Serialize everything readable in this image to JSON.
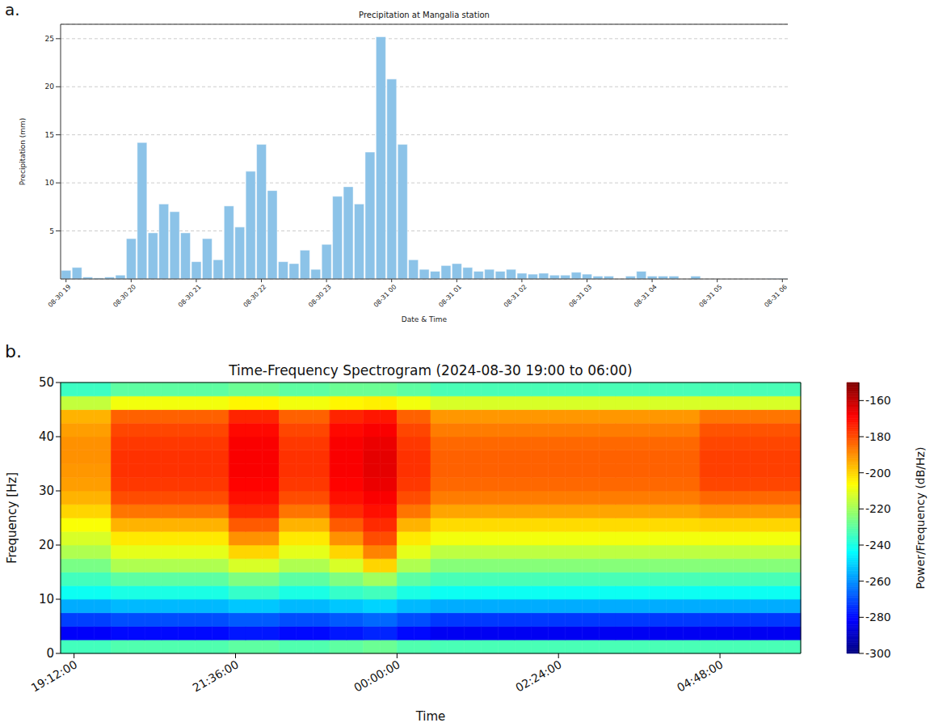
{
  "chart_data": [
    {
      "type": "bar",
      "panel_label": "a.",
      "title": "Precipitation at Mangalia station",
      "x_label": "Date & Time",
      "y_label": "Precipitation (mm)",
      "categories": [
        "08-30 19",
        null,
        null,
        null,
        null,
        null,
        "08-30 20",
        null,
        null,
        null,
        null,
        null,
        "08-30 21",
        null,
        null,
        null,
        null,
        null,
        "08-30 22",
        null,
        null,
        null,
        null,
        null,
        "08-30 23",
        null,
        null,
        null,
        null,
        null,
        "08-31 00",
        null,
        null,
        null,
        null,
        null,
        "08-31 01",
        null,
        null,
        null,
        null,
        null,
        "08-31 02",
        null,
        null,
        null,
        null,
        null,
        "08-31 03",
        null,
        null,
        null,
        null,
        null,
        "08-31 04",
        null,
        null,
        null,
        null,
        null,
        "08-31 05",
        null,
        null,
        null,
        null,
        null,
        "08-31 06"
      ],
      "values": [
        0.9,
        1.2,
        0.2,
        0.1,
        0.2,
        0.4,
        4.2,
        14.2,
        4.8,
        7.8,
        7.0,
        4.8,
        1.8,
        4.2,
        2.0,
        7.6,
        5.4,
        11.2,
        14.0,
        9.2,
        1.8,
        1.6,
        3.0,
        1.0,
        3.6,
        8.6,
        9.6,
        7.8,
        13.2,
        25.2,
        20.8,
        14.0,
        2.0,
        1.0,
        0.8,
        1.4,
        1.6,
        1.2,
        0.8,
        1.0,
        0.8,
        1.0,
        0.6,
        0.5,
        0.6,
        0.4,
        0.4,
        0.7,
        0.5,
        0.3,
        0.3,
        0.0,
        0.3,
        0.8,
        0.3,
        0.3,
        0.3,
        0.0,
        0.3,
        0.0,
        0.0,
        0.0,
        0.0,
        0.0,
        0.0,
        0.05,
        0.05
      ],
      "color": "#8cc3e8",
      "ylim": [
        0,
        26.5
      ],
      "yticks": [
        5,
        10,
        15,
        20,
        25
      ],
      "grid": true
    },
    {
      "type": "heatmap",
      "panel_label": "b.",
      "title": "Time-Frequency Spectrogram (2024-08-30 19:00 to 06:00)",
      "x_label": "Time",
      "y_label": "Frequency [Hz]",
      "xlim": [
        19,
        30
      ],
      "xticks": [
        {
          "value": 19.2,
          "label": "19:12:00"
        },
        {
          "value": 21.6,
          "label": "21:36:00"
        },
        {
          "value": 24,
          "label": "00:00:00"
        },
        {
          "value": 26.4,
          "label": "02:24:00"
        },
        {
          "value": 28.8,
          "label": "04:48:00"
        }
      ],
      "ylim": [
        0,
        50
      ],
      "yticks": [
        0,
        10,
        20,
        30,
        40,
        50
      ],
      "time_bins": [
        19,
        19.25,
        19.5,
        19.75,
        20,
        20.25,
        20.5,
        20.75,
        21,
        21.25,
        21.5,
        21.75,
        22,
        22.25,
        22.5,
        22.75,
        23,
        23.25,
        23.5,
        23.75,
        24,
        24.25,
        24.5,
        24.75,
        25,
        25.25,
        25.5,
        25.75,
        26,
        26.25,
        26.5,
        26.75,
        27,
        27.25,
        27.5,
        27.75,
        28,
        28.25,
        28.5,
        28.75,
        29,
        29.25,
        29.5,
        29.75,
        30
      ],
      "frequency_bins": [
        0,
        2.5,
        5,
        7.5,
        10,
        12.5,
        15,
        17.5,
        20,
        22.5,
        25,
        27.5,
        30,
        32.5,
        35,
        37.5,
        40,
        42.5,
        45,
        47.5,
        50
      ],
      "cells": [
        [
          -234,
          -234,
          -234,
          -232,
          -232,
          -232,
          -232,
          -232,
          -232,
          -232,
          -230,
          -230,
          -230,
          -232,
          -232,
          -232,
          -230,
          -230,
          -228,
          -228,
          -232,
          -232,
          -233,
          -233,
          -233,
          -233,
          -233,
          -233,
          -233,
          -233,
          -233,
          -233,
          -233,
          -233,
          -233,
          -233,
          -233,
          -233,
          -233,
          -233,
          -233,
          -233,
          -233,
          -233
        ],
        [
          -282,
          -282,
          -282,
          -280,
          -280,
          -280,
          -280,
          -280,
          -280,
          -280,
          -278,
          -278,
          -278,
          -280,
          -280,
          -280,
          -278,
          -278,
          -276,
          -276,
          -280,
          -280,
          -283,
          -283,
          -283,
          -283,
          -283,
          -283,
          -283,
          -283,
          -283,
          -283,
          -283,
          -283,
          -283,
          -283,
          -283,
          -283,
          -283,
          -283,
          -283,
          -283,
          -283,
          -283
        ],
        [
          -272,
          -272,
          -272,
          -270,
          -270,
          -270,
          -270,
          -270,
          -270,
          -270,
          -268,
          -268,
          -268,
          -270,
          -270,
          -270,
          -268,
          -268,
          -266,
          -266,
          -270,
          -270,
          -273,
          -273,
          -273,
          -273,
          -273,
          -273,
          -273,
          -273,
          -273,
          -273,
          -273,
          -273,
          -273,
          -273,
          -273,
          -273,
          -273,
          -273,
          -273,
          -273,
          -273,
          -273
        ],
        [
          -256,
          -256,
          -256,
          -254,
          -254,
          -254,
          -254,
          -254,
          -254,
          -254,
          -252,
          -252,
          -252,
          -254,
          -254,
          -254,
          -252,
          -252,
          -250,
          -250,
          -254,
          -254,
          -256,
          -256,
          -256,
          -256,
          -256,
          -256,
          -256,
          -256,
          -256,
          -256,
          -256,
          -256,
          -256,
          -256,
          -256,
          -256,
          -256,
          -256,
          -256,
          -256,
          -256,
          -256
        ],
        [
          -242,
          -242,
          -242,
          -240,
          -240,
          -240,
          -240,
          -240,
          -240,
          -240,
          -236,
          -236,
          -236,
          -240,
          -240,
          -240,
          -236,
          -236,
          -234,
          -234,
          -240,
          -240,
          -242,
          -242,
          -242,
          -242,
          -242,
          -242,
          -242,
          -242,
          -242,
          -242,
          -242,
          -242,
          -242,
          -242,
          -242,
          -242,
          -242,
          -242,
          -242,
          -242,
          -242,
          -242
        ],
        [
          -234,
          -234,
          -234,
          -230,
          -230,
          -230,
          -230,
          -230,
          -230,
          -230,
          -225,
          -225,
          -225,
          -230,
          -230,
          -230,
          -225,
          -225,
          -220,
          -220,
          -230,
          -230,
          -233,
          -233,
          -233,
          -233,
          -233,
          -233,
          -233,
          -233,
          -233,
          -233,
          -233,
          -233,
          -233,
          -233,
          -233,
          -233,
          -233,
          -233,
          -233,
          -233,
          -233,
          -233
        ],
        [
          -226,
          -226,
          -226,
          -218,
          -218,
          -218,
          -218,
          -218,
          -218,
          -218,
          -212,
          -212,
          -212,
          -218,
          -218,
          -218,
          -212,
          -212,
          -200,
          -200,
          -218,
          -218,
          -224,
          -224,
          -224,
          -224,
          -224,
          -224,
          -224,
          -224,
          -224,
          -224,
          -224,
          -224,
          -224,
          -224,
          -224,
          -224,
          -224,
          -224,
          -224,
          -224,
          -224,
          -224
        ],
        [
          -218,
          -218,
          -218,
          -210,
          -210,
          -210,
          -210,
          -210,
          -210,
          -210,
          -200,
          -200,
          -200,
          -210,
          -210,
          -210,
          -200,
          -200,
          -188,
          -188,
          -210,
          -210,
          -216,
          -216,
          -216,
          -216,
          -216,
          -216,
          -216,
          -216,
          -216,
          -216,
          -216,
          -216,
          -216,
          -216,
          -216,
          -216,
          -216,
          -216,
          -216,
          -216,
          -216,
          -216
        ],
        [
          -212,
          -212,
          -212,
          -203,
          -203,
          -203,
          -203,
          -203,
          -203,
          -203,
          -190,
          -190,
          -190,
          -203,
          -203,
          -203,
          -190,
          -190,
          -180,
          -180,
          -203,
          -203,
          -208,
          -208,
          -208,
          -208,
          -208,
          -208,
          -208,
          -208,
          -208,
          -208,
          -208,
          -208,
          -208,
          -208,
          -208,
          -208,
          -208,
          -208,
          -208,
          -208,
          -208,
          -208
        ],
        [
          -207,
          -207,
          -207,
          -195,
          -195,
          -195,
          -195,
          -195,
          -195,
          -195,
          -182,
          -182,
          -182,
          -195,
          -195,
          -195,
          -182,
          -182,
          -175,
          -175,
          -195,
          -195,
          -201,
          -201,
          -201,
          -201,
          -201,
          -201,
          -201,
          -201,
          -201,
          -201,
          -201,
          -201,
          -201,
          -201,
          -201,
          -201,
          -200,
          -200,
          -200,
          -200,
          -200,
          -200
        ],
        [
          -200,
          -200,
          -200,
          -186,
          -186,
          -186,
          -186,
          -186,
          -186,
          -186,
          -175,
          -175,
          -175,
          -186,
          -186,
          -186,
          -175,
          -175,
          -171,
          -171,
          -186,
          -186,
          -193,
          -193,
          -193,
          -193,
          -193,
          -193,
          -193,
          -193,
          -193,
          -193,
          -193,
          -193,
          -193,
          -193,
          -193,
          -193,
          -191,
          -191,
          -191,
          -191,
          -191,
          -191
        ],
        [
          -195,
          -195,
          -195,
          -180,
          -180,
          -180,
          -180,
          -180,
          -180,
          -180,
          -171,
          -171,
          -171,
          -180,
          -180,
          -180,
          -171,
          -171,
          -168,
          -168,
          -180,
          -180,
          -187,
          -187,
          -187,
          -187,
          -187,
          -187,
          -187,
          -187,
          -187,
          -187,
          -187,
          -187,
          -187,
          -187,
          -187,
          -187,
          -184,
          -184,
          -184,
          -184,
          -184,
          -184
        ],
        [
          -192,
          -192,
          -192,
          -177,
          -177,
          -177,
          -177,
          -177,
          -177,
          -177,
          -169,
          -169,
          -169,
          -177,
          -177,
          -177,
          -169,
          -169,
          -166,
          -166,
          -177,
          -177,
          -184,
          -184,
          -184,
          -184,
          -184,
          -184,
          -184,
          -184,
          -184,
          -184,
          -184,
          -184,
          -184,
          -184,
          -184,
          -184,
          -179,
          -179,
          -179,
          -179,
          -179,
          -179
        ],
        [
          -191,
          -191,
          -191,
          -176,
          -176,
          -176,
          -176,
          -176,
          -176,
          -176,
          -168,
          -168,
          -168,
          -176,
          -176,
          -176,
          -168,
          -168,
          -165,
          -165,
          -176,
          -176,
          -183,
          -183,
          -183,
          -183,
          -183,
          -183,
          -183,
          -183,
          -183,
          -183,
          -183,
          -183,
          -183,
          -183,
          -183,
          -183,
          -178,
          -178,
          -178,
          -178,
          -178,
          -178
        ],
        [
          -190,
          -190,
          -190,
          -176,
          -176,
          -176,
          -176,
          -176,
          -176,
          -176,
          -168,
          -168,
          -168,
          -176,
          -176,
          -176,
          -168,
          -168,
          -165,
          -165,
          -176,
          -176,
          -183,
          -183,
          -183,
          -183,
          -183,
          -183,
          -183,
          -183,
          -183,
          -183,
          -183,
          -183,
          -183,
          -183,
          -183,
          -183,
          -178,
          -178,
          -178,
          -178,
          -178,
          -178
        ],
        [
          -190,
          -190,
          -190,
          -177,
          -177,
          -177,
          -177,
          -177,
          -177,
          -177,
          -168,
          -168,
          -168,
          -177,
          -177,
          -177,
          -168,
          -168,
          -166,
          -166,
          -177,
          -177,
          -184,
          -184,
          -184,
          -184,
          -184,
          -184,
          -184,
          -184,
          -184,
          -184,
          -184,
          -184,
          -184,
          -184,
          -184,
          -184,
          -179,
          -179,
          -179,
          -179,
          -179,
          -179
        ],
        [
          -192,
          -192,
          -192,
          -179,
          -179,
          -179,
          -179,
          -179,
          -179,
          -179,
          -170,
          -170,
          -170,
          -179,
          -179,
          -179,
          -170,
          -170,
          -168,
          -168,
          -179,
          -179,
          -187,
          -187,
          -187,
          -187,
          -187,
          -187,
          -187,
          -187,
          -187,
          -187,
          -187,
          -187,
          -187,
          -187,
          -187,
          -187,
          -181,
          -181,
          -181,
          -181,
          -181,
          -181
        ],
        [
          -195,
          -195,
          -195,
          -183,
          -183,
          -183,
          -183,
          -183,
          -183,
          -183,
          -174,
          -174,
          -174,
          -183,
          -183,
          -183,
          -174,
          -174,
          -172,
          -172,
          -183,
          -183,
          -191,
          -191,
          -191,
          -191,
          -191,
          -191,
          -191,
          -191,
          -191,
          -191,
          -191,
          -191,
          -191,
          -191,
          -191,
          -191,
          -186,
          -186,
          -186,
          -186,
          -186,
          -186
        ],
        [
          -215,
          -215,
          -215,
          -208,
          -208,
          -208,
          -208,
          -208,
          -208,
          -208,
          -205,
          -205,
          -205,
          -208,
          -208,
          -208,
          -205,
          -205,
          -204,
          -204,
          -208,
          -208,
          -212,
          -212,
          -212,
          -212,
          -212,
          -212,
          -212,
          -212,
          -212,
          -212,
          -212,
          -212,
          -212,
          -212,
          -212,
          -212,
          -212,
          -212,
          -212,
          -212,
          -212,
          -212
        ],
        [
          -235,
          -235,
          -235,
          -230,
          -230,
          -230,
          -230,
          -230,
          -230,
          -230,
          -228,
          -228,
          -228,
          -230,
          -230,
          -230,
          -228,
          -228,
          -228,
          -228,
          -230,
          -230,
          -233,
          -233,
          -233,
          -233,
          -233,
          -233,
          -233,
          -233,
          -233,
          -233,
          -233,
          -233,
          -233,
          -233,
          -233,
          -233,
          -233,
          -233,
          -233,
          -233,
          -233,
          -233
        ]
      ],
      "colorbar": {
        "label": "Power/Frequency (dB/Hz)",
        "range": [
          -300,
          -150
        ],
        "ticks": [
          -300,
          -280,
          -260,
          -240,
          -220,
          -200,
          -180,
          -160
        ]
      }
    }
  ]
}
